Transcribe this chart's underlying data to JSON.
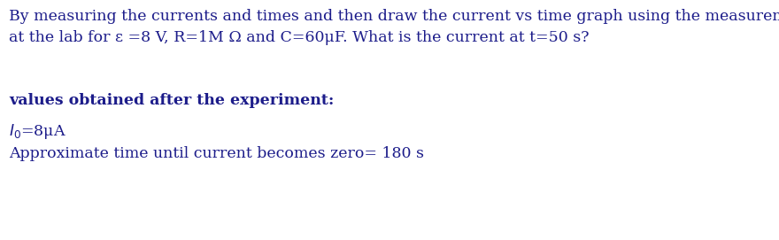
{
  "background_color": "#ffffff",
  "text_color": "#1c1c8a",
  "line1": "By measuring the currents and times and then draw the current vs time graph using the measurement",
  "line2": "at the lab for ε =8 V, R=1M Ω and C=60μF. What is the current at t=50 s?",
  "bold_label": "values obtained after the experiment:",
  "value1_math": "$I_0$=8μA",
  "value2": "Approximate time until current becomes zero= 180 s",
  "font_size_main": 12.5,
  "font_size_bold": 12.5,
  "font_size_values": 12.5,
  "fig_width": 8.8,
  "fig_height": 2.71,
  "dpi": 100
}
